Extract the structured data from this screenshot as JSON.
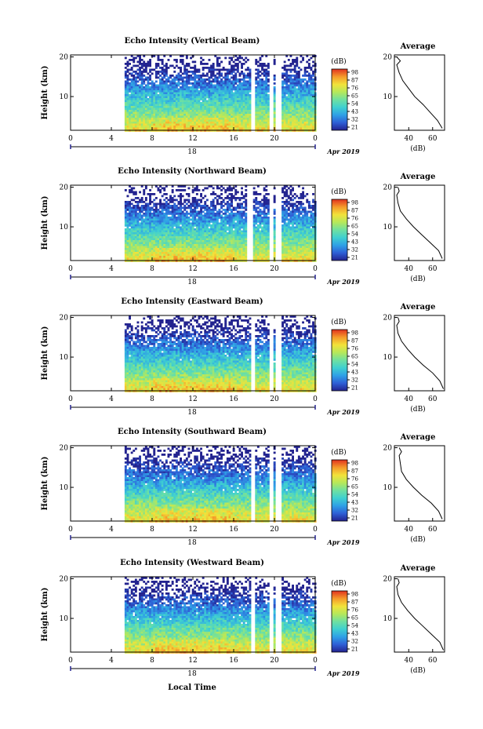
{
  "figure": {
    "x_axis_label": "Local Time",
    "date_label": "Apr 2019",
    "colorbar_unit": "(dB)",
    "average_title": "Average",
    "average_xlabel": "(dB)",
    "height_label": "Height (km)"
  },
  "chart_data": [
    {
      "type": "heatmap",
      "title": "Echo Intensity (Vertical Beam)",
      "ylabel": "Height (km)",
      "xlabel": "Local Time",
      "x_ticks": [
        "0",
        "4",
        "8",
        "12",
        "16",
        "20",
        "0"
      ],
      "xlim": [
        0,
        24
      ],
      "day_label": "18",
      "y_ticks": [
        "10",
        "20"
      ],
      "ylim": [
        1.5,
        20.5
      ],
      "colorbar_ticks": [
        "98",
        "87",
        "76",
        "65",
        "54",
        "43",
        "32",
        "21"
      ],
      "clim": [
        21,
        98
      ],
      "data_start_hour": 5.3,
      "gap_hours": [
        17.8,
        19.6,
        20.3
      ],
      "profile": {
        "xlabel": "(dB)",
        "x_ticks": [
          "40",
          "60"
        ],
        "xlim": [
          28,
          70
        ],
        "heights_km": [
          2,
          4,
          6,
          8,
          10,
          12,
          14,
          16,
          18,
          19,
          20
        ],
        "values_db": [
          68,
          64,
          58,
          52,
          45,
          40,
          35,
          32,
          30,
          33,
          30
        ]
      }
    },
    {
      "type": "heatmap",
      "title": "Echo Intensity (Northward Beam)",
      "ylabel": "Height (km)",
      "xlabel": "Local Time",
      "x_ticks": [
        "0",
        "4",
        "8",
        "12",
        "16",
        "20",
        "0"
      ],
      "xlim": [
        0,
        24
      ],
      "day_label": "18",
      "y_ticks": [
        "10",
        "20"
      ],
      "ylim": [
        1.5,
        20.5
      ],
      "colorbar_ticks": [
        "98",
        "87",
        "76",
        "65",
        "54",
        "43",
        "32",
        "21"
      ],
      "clim": [
        21,
        98
      ],
      "data_start_hour": 5.3,
      "gap_hours": [
        17.5,
        19.6,
        20.3
      ],
      "profile": {
        "xlabel": "(dB)",
        "x_ticks": [
          "40",
          "60"
        ],
        "xlim": [
          28,
          70
        ],
        "heights_km": [
          2,
          4,
          6,
          8,
          10,
          12,
          14,
          16,
          18,
          19,
          20
        ],
        "values_db": [
          68,
          65,
          58,
          51,
          44,
          38,
          33,
          31,
          30,
          32,
          31
        ]
      }
    },
    {
      "type": "heatmap",
      "title": "Echo Intensity (Eastward Beam)",
      "ylabel": "Height (km)",
      "xlabel": "Local Time",
      "x_ticks": [
        "0",
        "4",
        "8",
        "12",
        "16",
        "20",
        "0"
      ],
      "xlim": [
        0,
        24
      ],
      "day_label": "18",
      "y_ticks": [
        "10",
        "20"
      ],
      "ylim": [
        1.5,
        20.5
      ],
      "colorbar_ticks": [
        "98",
        "87",
        "76",
        "65",
        "54",
        "43",
        "32",
        "21"
      ],
      "clim": [
        21,
        98
      ],
      "data_start_hour": 5.3,
      "gap_hours": [
        17.8,
        19.6,
        20.3
      ],
      "profile": {
        "xlabel": "(dB)",
        "x_ticks": [
          "40",
          "60"
        ],
        "xlim": [
          28,
          70
        ],
        "heights_km": [
          2,
          4,
          6,
          8,
          10,
          12,
          14,
          16,
          18,
          19,
          20
        ],
        "values_db": [
          69,
          66,
          60,
          52,
          45,
          39,
          34,
          31,
          30,
          32,
          31
        ]
      }
    },
    {
      "type": "heatmap",
      "title": "Echo Intensity (Southward Beam)",
      "ylabel": "Height (km)",
      "xlabel": "Local Time",
      "x_ticks": [
        "0",
        "4",
        "8",
        "12",
        "16",
        "20",
        "0"
      ],
      "xlim": [
        0,
        24
      ],
      "day_label": "18",
      "y_ticks": [
        "10",
        "20"
      ],
      "ylim": [
        1.5,
        20.5
      ],
      "colorbar_ticks": [
        "98",
        "87",
        "76",
        "65",
        "54",
        "43",
        "32",
        "21"
      ],
      "clim": [
        21,
        98
      ],
      "data_start_hour": 5.3,
      "gap_hours": [
        17.8,
        19.6,
        20.3
      ],
      "profile": {
        "xlabel": "(dB)",
        "x_ticks": [
          "40",
          "60"
        ],
        "xlim": [
          28,
          70
        ],
        "heights_km": [
          2,
          4,
          6,
          8,
          10,
          12,
          14,
          16,
          18,
          19,
          20
        ],
        "values_db": [
          68,
          65,
          59,
          51,
          44,
          38,
          34,
          33,
          32,
          34,
          32
        ]
      }
    },
    {
      "type": "heatmap",
      "title": "Echo Intensity (Westward Beam)",
      "ylabel": "Height (km)",
      "xlabel": "Local Time",
      "x_ticks": [
        "0",
        "4",
        "8",
        "12",
        "16",
        "20",
        "0"
      ],
      "xlim": [
        0,
        24
      ],
      "day_label": "18",
      "y_ticks": [
        "10",
        "20"
      ],
      "ylim": [
        1.5,
        20.5
      ],
      "colorbar_ticks": [
        "98",
        "87",
        "76",
        "65",
        "54",
        "43",
        "32",
        "21"
      ],
      "clim": [
        21,
        98
      ],
      "data_start_hour": 5.3,
      "gap_hours": [
        17.8,
        19.6,
        20.3
      ],
      "profile": {
        "xlabel": "(dB)",
        "x_ticks": [
          "40",
          "60"
        ],
        "xlim": [
          28,
          70
        ],
        "heights_km": [
          2,
          4,
          6,
          8,
          10,
          12,
          14,
          16,
          18,
          19,
          20
        ],
        "values_db": [
          69,
          66,
          59,
          52,
          45,
          39,
          34,
          31,
          30,
          32,
          31
        ]
      }
    }
  ],
  "colors": {
    "scale": [
      "#23238f",
      "#2e5fd6",
      "#2fa0e6",
      "#3fd0d0",
      "#6fe0a0",
      "#b6e85a",
      "#f2e23a",
      "#f59a2a",
      "#e0321f"
    ]
  }
}
